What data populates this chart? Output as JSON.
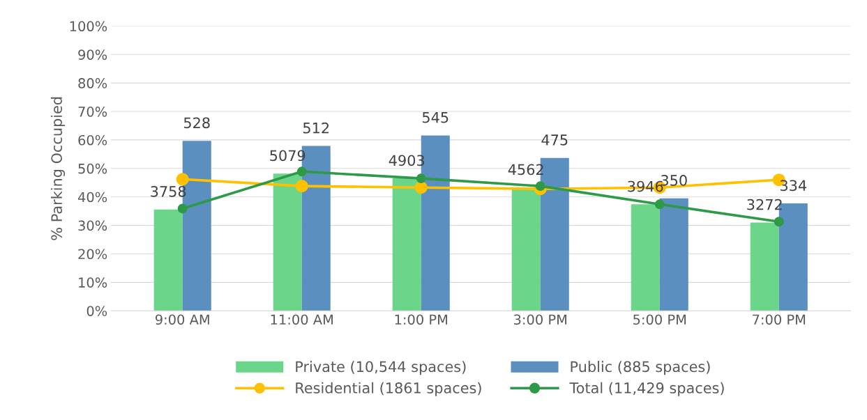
{
  "chart_data": {
    "type": "bar",
    "ylabel": "% Parking Occupied",
    "categories": [
      "9:00 AM",
      "11:00 AM",
      "1:00 PM",
      "3:00 PM",
      "5:00 PM",
      "7:00 PM"
    ],
    "series": [
      {
        "name": "Private (10,544 spaces)",
        "color": "#6bd68a",
        "values": [
          35.6,
          48.2,
          46.5,
          43.3,
          37.4,
          31.0
        ]
      },
      {
        "name": "Public (885 spaces)",
        "color": "#5a8fc0",
        "values": [
          59.7,
          57.9,
          61.6,
          53.7,
          39.5,
          37.7
        ]
      },
      {
        "name": "Residential (1861 spaces)",
        "type": "line",
        "color": "#ffc000",
        "values": [
          46.2,
          43.8,
          43.3,
          42.8,
          43.3,
          46.0
        ]
      },
      {
        "name": "Total (11,429 spaces)",
        "type": "line",
        "color": "#2e9a48",
        "values": [
          35.9,
          48.9,
          46.5,
          43.8,
          37.4,
          31.3
        ]
      }
    ],
    "ylim": [
      0,
      100
    ],
    "yticks": [
      {
        "value": 0,
        "label": "0%"
      },
      {
        "value": 10,
        "label": "10%"
      },
      {
        "value": 20,
        "label": "20%"
      },
      {
        "value": 30,
        "label": "30%"
      },
      {
        "value": 40,
        "label": "40%"
      },
      {
        "value": 50,
        "label": "50%"
      },
      {
        "value": 60,
        "label": "60%"
      },
      {
        "value": 70,
        "label": "70%"
      },
      {
        "value": 80,
        "label": "80%"
      },
      {
        "value": 90,
        "label": "90%"
      },
      {
        "value": 100,
        "label": "100%"
      }
    ],
    "annotations": [
      {
        "text": "3758",
        "x": "9:00 AM",
        "y": 35.6
      },
      {
        "text": "5079",
        "x": "11:00 AM",
        "y": 48.2
      },
      {
        "text": "4903",
        "x": "1:00 PM",
        "y": 46.5
      },
      {
        "text": "4562",
        "x": "3:00 PM",
        "y": 43.3
      },
      {
        "text": "3946",
        "x": "5:00 PM",
        "y": 37.4
      },
      {
        "text": "3272",
        "x": "7:00 PM",
        "y": 31.0
      },
      {
        "text": "528",
        "x": "9:00 AM",
        "y": 59.7
      },
      {
        "text": "512",
        "x": "11:00 AM",
        "y": 57.9
      },
      {
        "text": "545",
        "x": "1:00 PM",
        "y": 61.6
      },
      {
        "text": "475",
        "x": "3:00 PM",
        "y": 53.7
      },
      {
        "text": "350",
        "x": "5:00 PM",
        "y": 39.5
      },
      {
        "text": "334",
        "x": "7:00 PM",
        "y": 37.7
      }
    ],
    "grid": "y",
    "legend": "bottom",
    "marker": "circle",
    "line_style": "solid"
  }
}
